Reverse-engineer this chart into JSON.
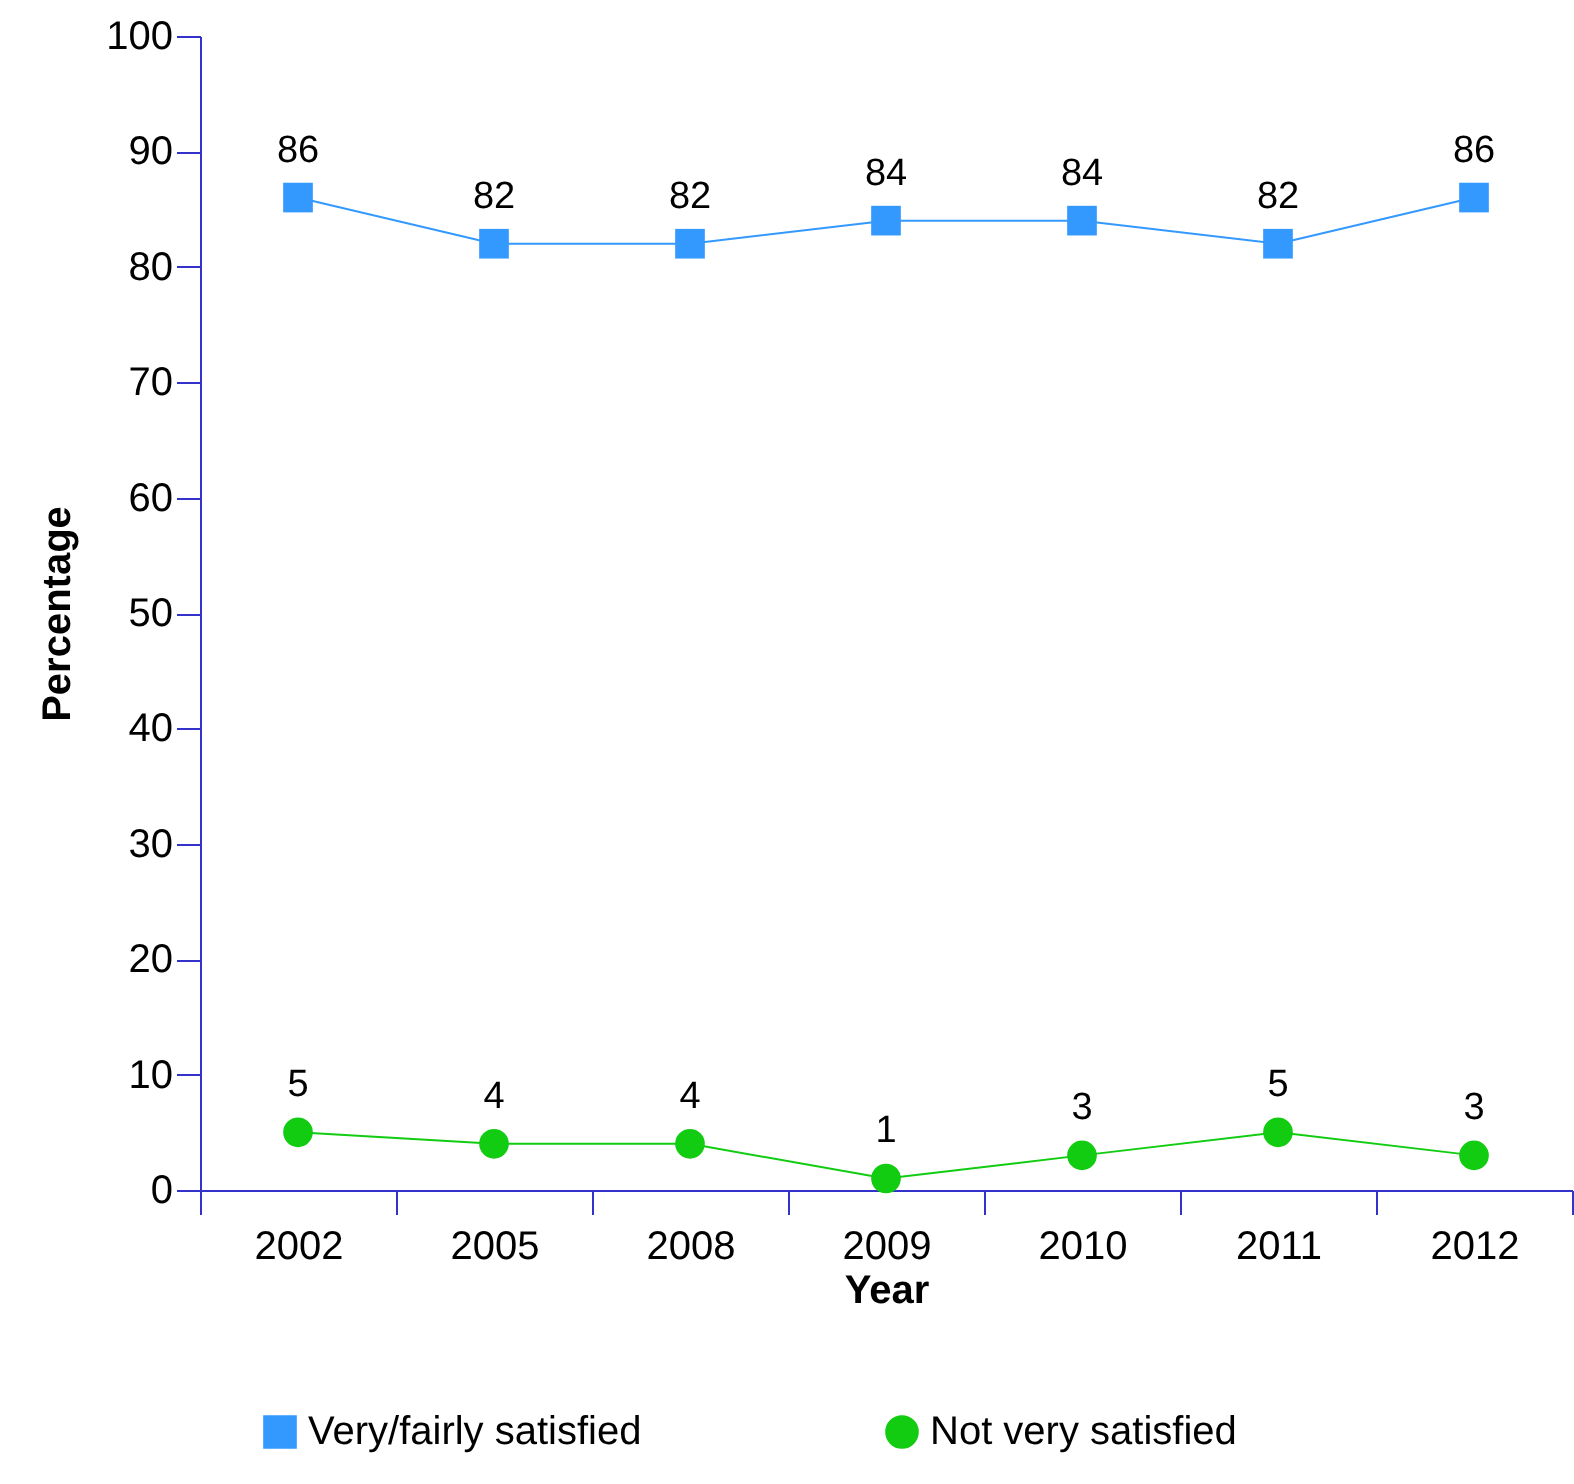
{
  "chart_data": {
    "type": "line",
    "xlabel": "Year",
    "ylabel": "Percentage",
    "categories": [
      "2002",
      "2005",
      "2008",
      "2009",
      "2010",
      "2011",
      "2012"
    ],
    "series": [
      {
        "name": "Very/fairly satisfied",
        "color": "#3399ff",
        "marker": "square",
        "values": [
          86,
          82,
          82,
          84,
          84,
          82,
          86
        ]
      },
      {
        "name": "Not very satisfied",
        "color": "#11cc11",
        "marker": "circle",
        "values": [
          5,
          4,
          4,
          1,
          3,
          5,
          3
        ]
      }
    ],
    "ylim": [
      0,
      100
    ],
    "yticks": [
      0,
      10,
      20,
      30,
      40,
      50,
      60,
      70,
      80,
      90,
      100
    ],
    "grid": false,
    "legend": "bottom",
    "data_labels": true,
    "line_style": "solid"
  }
}
